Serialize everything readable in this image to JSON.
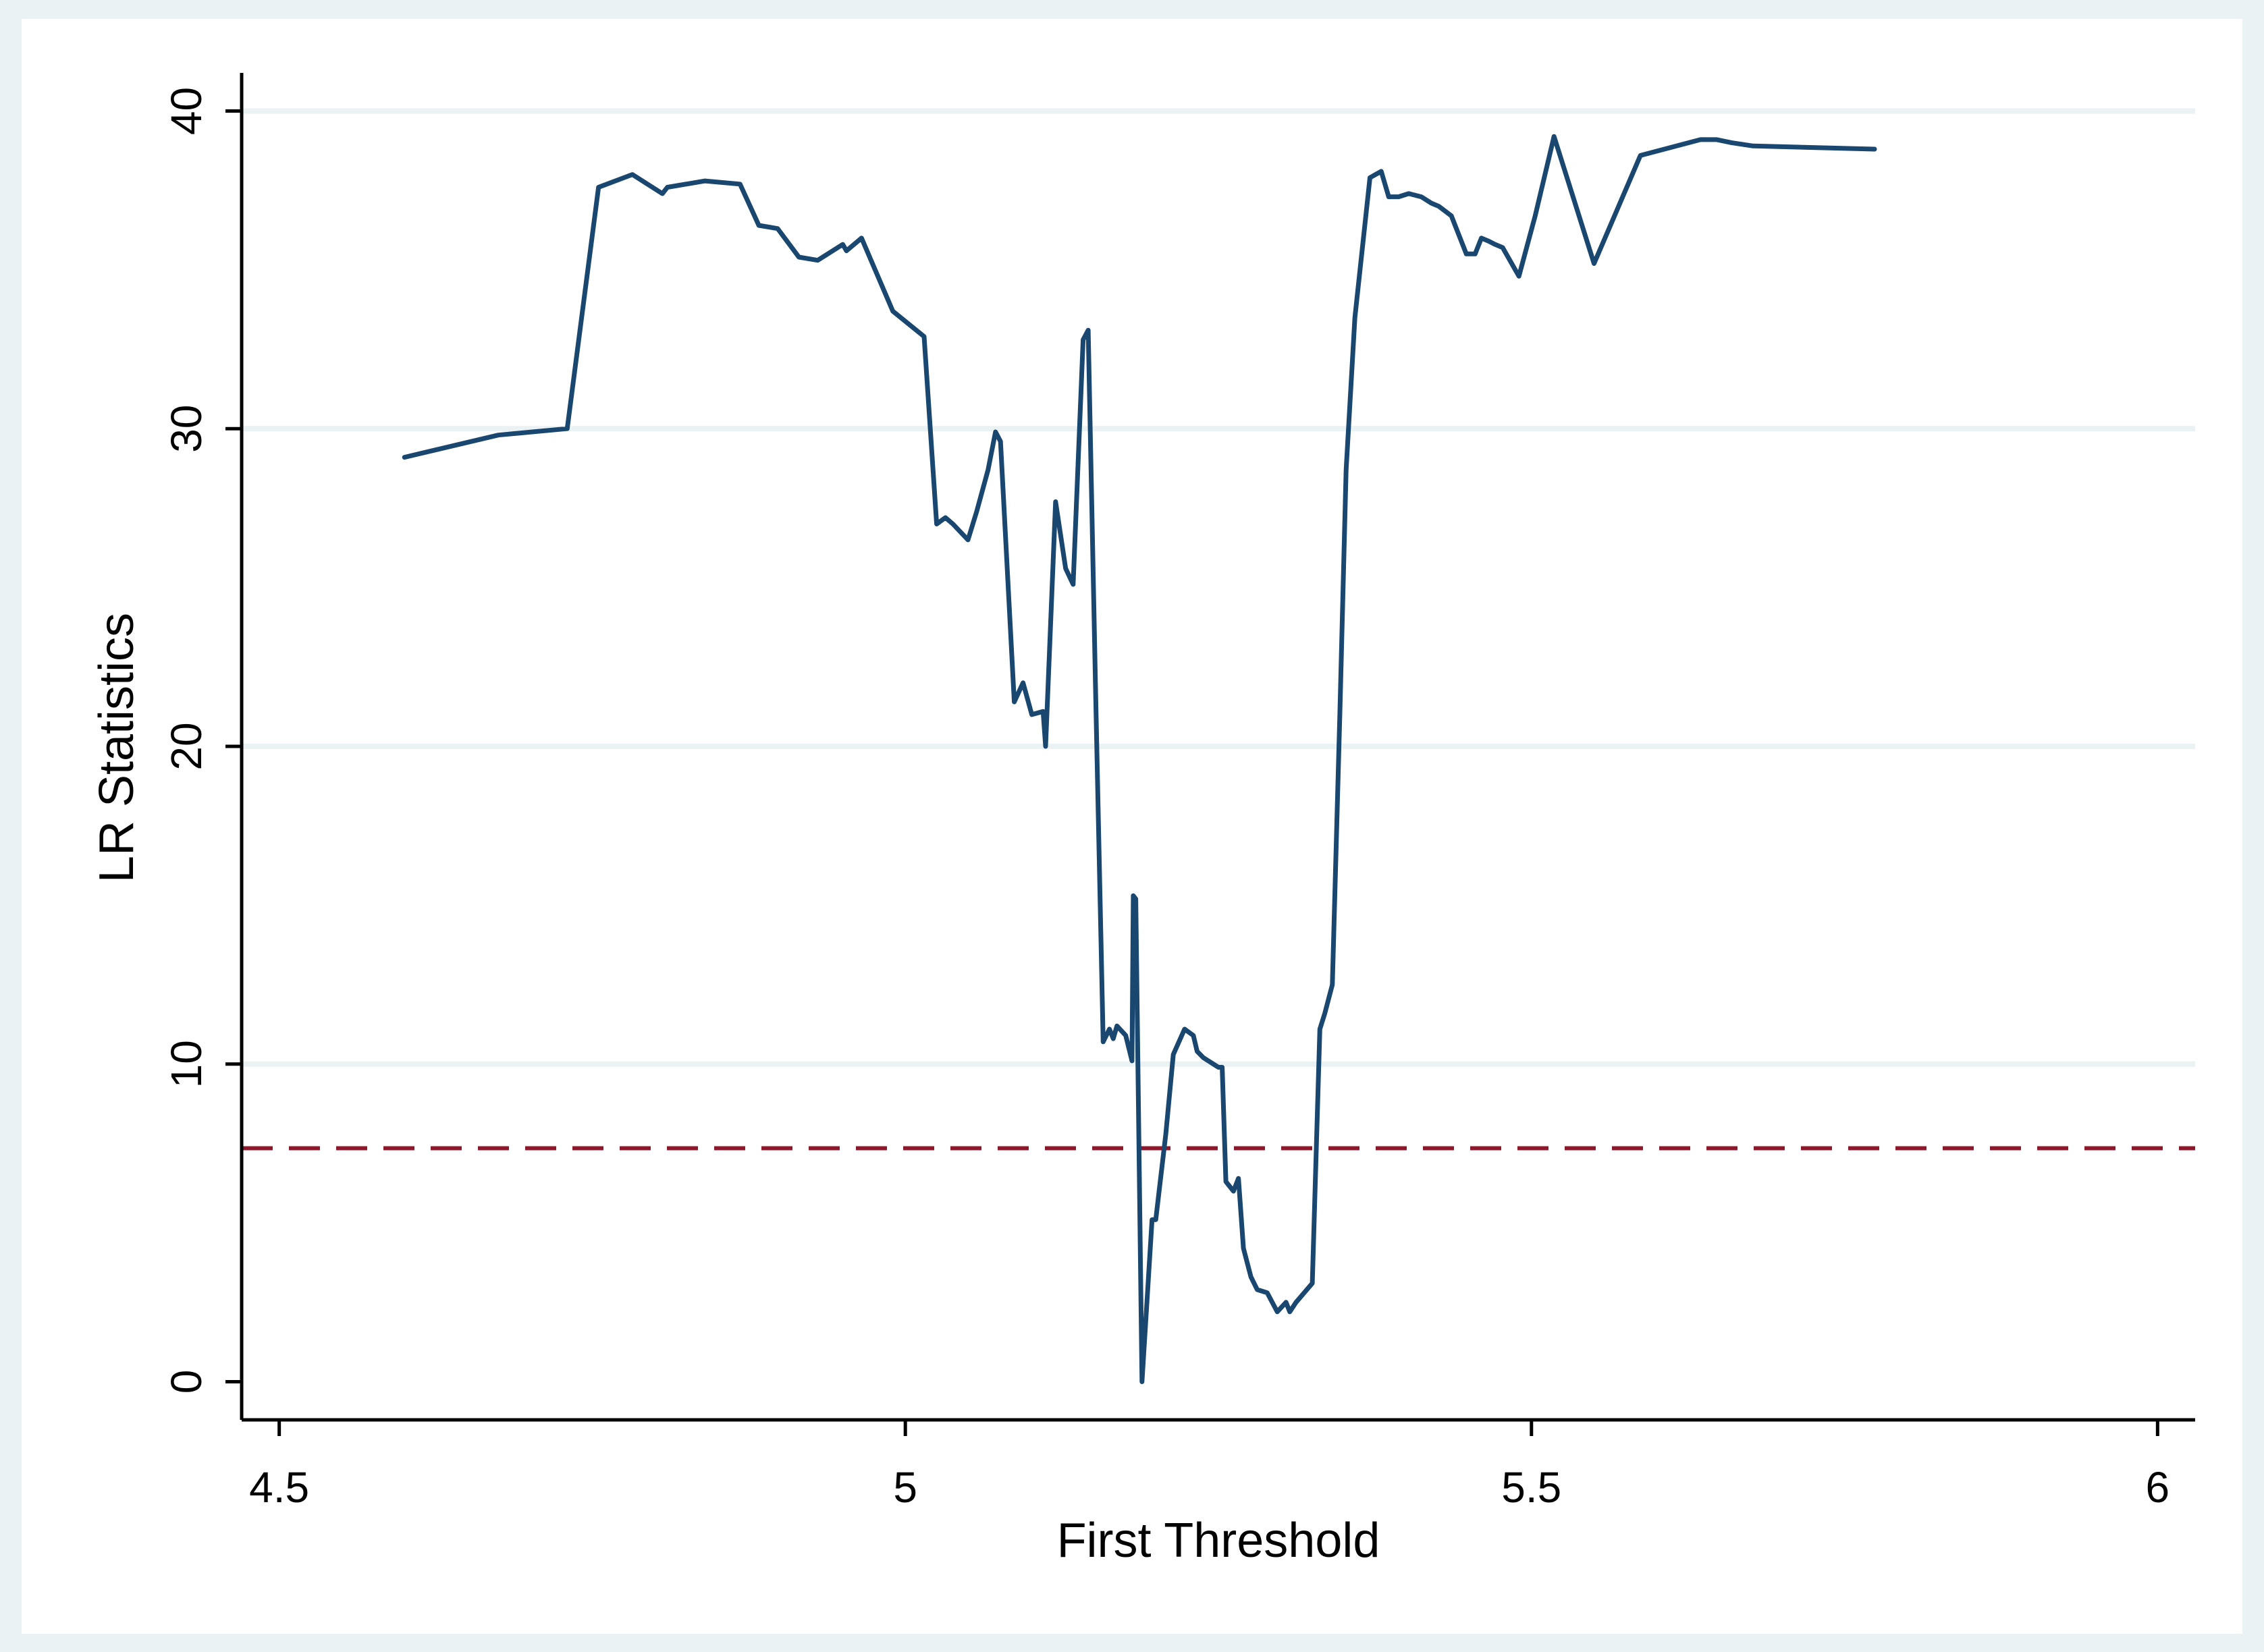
{
  "colors": {
    "outer_background": "#eaf2f3",
    "plot_background": "#ffffff",
    "gridline": "#eaf2f3",
    "line": "#1a476f",
    "reference_line": "#90162b",
    "axis": "#000000"
  },
  "chart_data": {
    "type": "line",
    "title": "",
    "xlabel": "First Threshold",
    "ylabel": "LR Statistics",
    "xlim": [
      4.47,
      6.03
    ],
    "ylim": [
      -1.2,
      41.2
    ],
    "xticks": [
      4.5,
      5,
      5.5,
      6
    ],
    "xtick_labels": [
      "4.5",
      "5",
      "5.5",
      "6"
    ],
    "yticks": [
      0,
      10,
      20,
      30,
      40
    ],
    "ytick_labels": [
      "0",
      "10",
      "20",
      "30",
      "40"
    ],
    "grid": true,
    "legend": "none",
    "reference_line": {
      "orientation": "horizontal",
      "y": 7.35,
      "style": "dashed"
    },
    "series": [
      {
        "x": [
          4.6,
          4.675,
          4.73,
          4.755,
          4.782,
          4.806,
          4.81,
          4.84,
          4.868,
          4.883,
          4.898,
          4.915,
          4.93,
          4.95,
          4.953,
          4.965,
          4.99,
          5.015,
          5.025,
          5.032,
          5.038,
          5.05,
          5.057,
          5.066,
          5.072,
          5.076,
          5.087,
          5.094,
          5.101,
          5.11,
          5.112,
          5.12,
          5.128,
          5.134,
          5.142,
          5.146,
          5.152,
          5.158,
          5.163,
          5.166,
          5.169,
          5.176,
          5.181,
          5.182,
          5.184,
          5.189,
          5.197,
          5.2,
          5.208,
          5.214,
          5.223,
          5.23,
          5.233,
          5.238,
          5.25,
          5.253,
          5.256,
          5.262,
          5.266,
          5.27,
          5.276,
          5.281,
          5.289,
          5.297,
          5.304,
          5.307,
          5.312,
          5.325,
          5.331,
          5.335,
          5.341,
          5.347,
          5.352,
          5.359,
          5.371,
          5.38,
          5.386,
          5.394,
          5.402,
          5.412,
          5.42,
          5.426,
          5.436,
          5.448,
          5.455,
          5.46,
          5.466,
          5.471,
          5.477,
          5.49,
          5.503,
          5.518,
          5.55,
          5.587,
          5.635,
          5.648,
          5.66,
          5.677,
          5.774
        ],
        "y": [
          29.1,
          29.8,
          30.0,
          37.6,
          38.0,
          37.4,
          37.6,
          37.8,
          37.7,
          36.4,
          36.3,
          35.4,
          35.3,
          35.8,
          35.6,
          36.0,
          33.7,
          32.9,
          27.0,
          27.2,
          27.0,
          26.5,
          27.4,
          28.7,
          29.9,
          29.6,
          21.4,
          22.0,
          21.0,
          21.1,
          20.0,
          27.7,
          25.6,
          25.1,
          32.8,
          33.1,
          21.6,
          10.7,
          11.1,
          10.8,
          11.2,
          10.9,
          10.1,
          15.3,
          15.2,
          0.0,
          5.1,
          5.1,
          7.8,
          10.3,
          11.1,
          10.9,
          10.4,
          10.2,
          9.9,
          9.9,
          6.3,
          6.0,
          6.4,
          4.2,
          3.3,
          2.9,
          2.8,
          2.2,
          2.5,
          2.2,
          2.5,
          3.1,
          11.1,
          11.6,
          12.5,
          21.0,
          28.7,
          33.5,
          37.9,
          38.1,
          37.3,
          37.3,
          37.4,
          37.3,
          37.1,
          37.0,
          36.7,
          35.5,
          35.5,
          36.0,
          35.9,
          35.8,
          35.7,
          34.8,
          36.7,
          39.2,
          35.2,
          38.6,
          39.1,
          39.1,
          39.0,
          38.9,
          38.8
        ]
      }
    ]
  }
}
